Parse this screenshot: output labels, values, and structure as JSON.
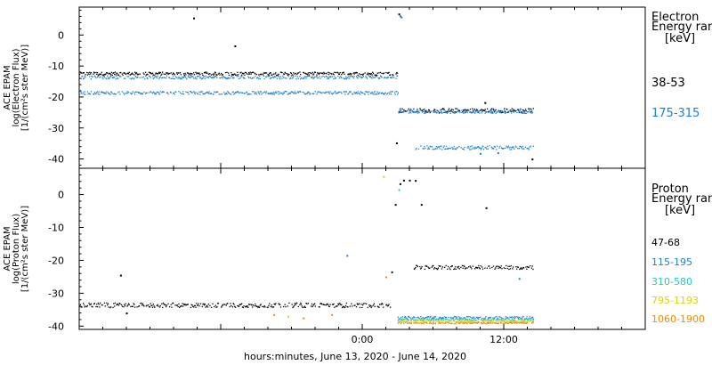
{
  "chart_data": [
    {
      "type": "scatter",
      "panel": "electron",
      "ylabel": [
        "ACE EPAM",
        "log(Electron Flux)",
        "[1/(cm²s ster MeV)]"
      ],
      "ylim": [
        -43,
        9
      ],
      "yticks": [
        0,
        -10,
        -20,
        -30,
        -40
      ],
      "legend_title": [
        "Electron",
        "Energy ran",
        "[keV]"
      ],
      "series": [
        {
          "name": "38-53",
          "color": "#000000",
          "segments": [
            {
              "x0": -24,
              "x1": 3.0,
              "y": -12.3,
              "jitter": 0.5
            },
            {
              "x0": 3.0,
              "x1": 14.5,
              "y": -24.2,
              "jitter": 0.7
            }
          ],
          "points": [
            [
              -14.3,
              5.5
            ],
            [
              -10.8,
              -3.5
            ],
            [
              2.9,
              -34.8
            ],
            [
              3.1,
              6.8
            ],
            [
              10.4,
              -21.8
            ],
            [
              14.4,
              -40.0
            ]
          ]
        },
        {
          "name": "175-315",
          "color": "#1a7fd6",
          "segments": [
            {
              "x0": -24,
              "x1": 3.0,
              "y": -13.5,
              "jitter": 0.5
            },
            {
              "x0": -24,
              "x1": 3.0,
              "y": -18.5,
              "jitter": 0.5
            },
            {
              "x0": 3.0,
              "x1": 14.5,
              "y": -24.6,
              "jitter": 0.5
            },
            {
              "x0": 4.5,
              "x1": 14.5,
              "y": -36.2,
              "jitter": 0.6
            }
          ],
          "points": [
            [
              3.2,
              6.2
            ],
            [
              3.3,
              5.8
            ],
            [
              10.0,
              -38.2
            ],
            [
              11.5,
              -38.0
            ]
          ]
        }
      ]
    },
    {
      "type": "scatter",
      "panel": "proton",
      "ylabel": [
        "ACE EPAM",
        "log(Proton Flux)",
        "[1/(cm²s ster MeV)]"
      ],
      "ylim": [
        -41,
        8
      ],
      "yticks": [
        0,
        -10,
        -20,
        -30,
        -40
      ],
      "xlabel": "hours:minutes, June 13, 2020 - June 14, 2020",
      "xlim": [
        -24,
        24
      ],
      "xticks": [
        {
          "v": 0,
          "label": "0:00"
        },
        {
          "v": 12,
          "label": "12:00"
        }
      ],
      "legend_title": [
        "Proton",
        "Energy ran",
        "[keV]"
      ],
      "series": [
        {
          "name": "47-68",
          "color": "#000000",
          "segments": [
            {
              "x0": -24,
              "x1": 2.5,
              "y": -33.5,
              "jitter": 0.7
            },
            {
              "x0": 4.3,
              "x1": 14.5,
              "y": -22.0,
              "jitter": 0.6
            }
          ],
          "points": [
            [
              -20.5,
              -24.5
            ],
            [
              -20.0,
              -36.0
            ],
            [
              2.5,
              -23.5
            ],
            [
              2.8,
              -3.0
            ],
            [
              3.2,
              3.3
            ],
            [
              3.5,
              4.4
            ],
            [
              4.0,
              4.4
            ],
            [
              4.5,
              4.3
            ],
            [
              5.0,
              -3.0
            ],
            [
              10.5,
              -4.0
            ]
          ]
        },
        {
          "name": "115-195",
          "color": "#1a7fd6",
          "segments": [
            {
              "x0": 3.0,
              "x1": 14.5,
              "y": -37.3,
              "jitter": 0.4
            }
          ],
          "points": [
            [
              -1.3,
              -18.5
            ],
            [
              13.3,
              -25.5
            ]
          ]
        },
        {
          "name": "310-580",
          "color": "#1ec9c9",
          "segments": [
            {
              "x0": 3.0,
              "x1": 14.5,
              "y": -37.9,
              "jitter": 0.3
            }
          ],
          "points": [
            [
              3.1,
              1.5
            ]
          ]
        },
        {
          "name": "795-1193",
          "color": "#d6d600",
          "segments": [
            {
              "x0": 3.0,
              "x1": 14.5,
              "y": -38.4,
              "jitter": 0.25
            }
          ],
          "points": [
            [
              1.8,
              5.5
            ],
            [
              -6.3,
              -37.0
            ]
          ]
        },
        {
          "name": "1060-1900",
          "color": "#f08a00",
          "segments": [
            {
              "x0": 3.0,
              "x1": 14.5,
              "y": -38.9,
              "jitter": 0.2
            }
          ],
          "points": [
            [
              -7.5,
              -36.5
            ],
            [
              -5.0,
              -37.5
            ],
            [
              -2.6,
              -36.5
            ],
            [
              2.0,
              -25.0
            ]
          ]
        }
      ]
    }
  ]
}
